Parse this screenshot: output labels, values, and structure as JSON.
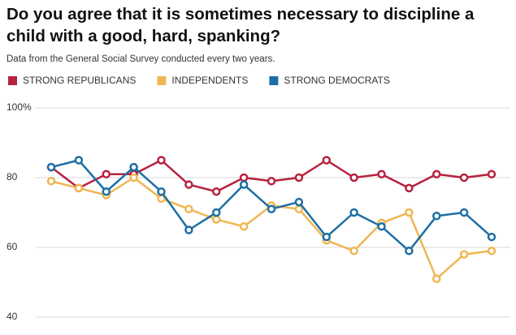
{
  "chart_data": {
    "type": "line",
    "title": "Do you agree that it is sometimes necessary to discipline a child with a good, hard, spanking?",
    "subtitle": "Data from the General Social Survey conducted every two years.",
    "categories": [
      null,
      null,
      null,
      null,
      null,
      null,
      null,
      null,
      null,
      null,
      null,
      null,
      null,
      null,
      null,
      null,
      null
    ],
    "series": [
      {
        "name": "STRONG REPUBLICANS",
        "color": "#b8213f",
        "values": [
          83,
          77,
          81,
          81,
          85,
          78,
          76,
          80,
          79,
          80,
          85,
          80,
          81,
          77,
          81,
          80,
          81
        ]
      },
      {
        "name": "INDEPENDENTS",
        "color": "#efb652",
        "values": [
          79,
          77,
          75,
          80,
          74,
          71,
          68,
          66,
          72,
          71,
          62,
          59,
          67,
          70,
          51,
          58,
          59
        ]
      },
      {
        "name": "STRONG DEMOCRATS",
        "color": "#1d6fa5",
        "values": [
          83,
          85,
          76,
          83,
          76,
          65,
          70,
          78,
          71,
          73,
          63,
          70,
          66,
          59,
          69,
          70,
          63
        ]
      }
    ],
    "ylim": [
      40,
      100
    ],
    "yticks": [
      40,
      60,
      80,
      {
        "value": 100,
        "label": "100%"
      }
    ],
    "grid": true
  }
}
